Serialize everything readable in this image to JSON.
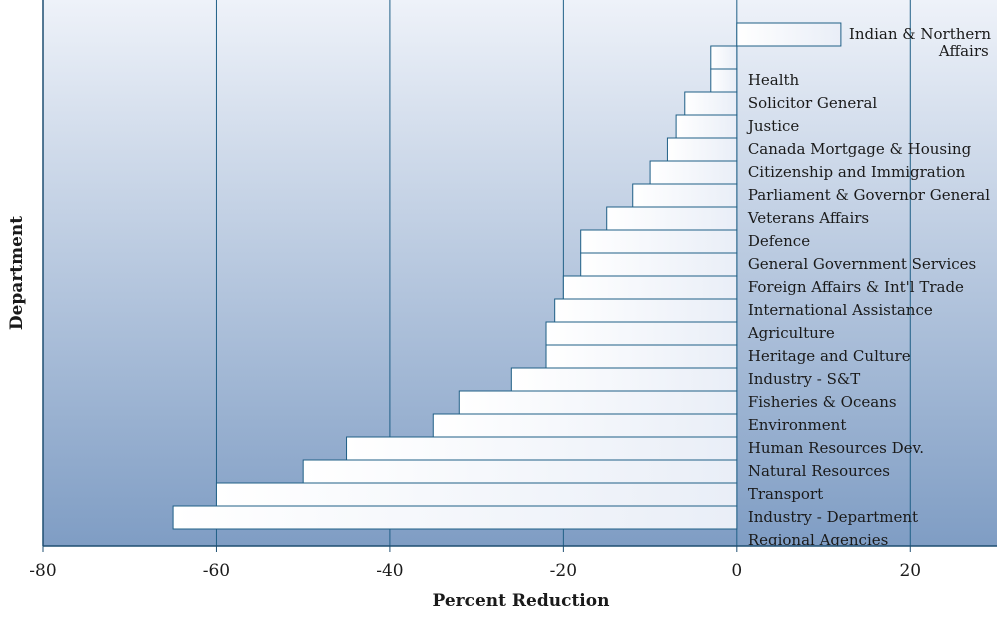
{
  "chart_data": {
    "type": "bar",
    "orientation": "horizontal",
    "xlabel": "Percent Reduction",
    "ylabel": "Department",
    "xlim": [
      -80,
      30
    ],
    "xticks": [
      -80,
      -60,
      -40,
      -20,
      0,
      20
    ],
    "grid": "vertical",
    "categories": [
      "Indian & Northern Affairs",
      "Health",
      "Solicitor General",
      "Justice",
      "Canada Mortgage & Housing",
      "Citizenship and Immigration",
      "Parliament & Governor General",
      "Veterans Affairs",
      "Defence",
      "General Government Services",
      "Foreign Affairs & Int'l Trade",
      "International Assistance",
      "Agriculture",
      "Heritage and Culture",
      "Industry - S&T",
      "Fisheries & Oceans",
      "Environment",
      "Human Resources Dev.",
      "Natural Resources",
      "Transport",
      "Industry - Department",
      "Regional Agencies"
    ],
    "values": [
      12,
      -3,
      -3,
      -6,
      -7,
      -8,
      -10,
      -12,
      -15,
      -18,
      -18,
      -20,
      -21,
      -22,
      -22,
      -26,
      -32,
      -35,
      -45,
      -50,
      -60,
      -65
    ],
    "colors": {
      "background_top": "#eef2f9",
      "background_bottom": "#7f9dc4",
      "bar_fill_start": "#ffffff",
      "bar_fill_end": "#e9eef7",
      "bar_stroke": "#1f5f86",
      "grid": "#1f5f86",
      "axis": "#1f4f72"
    }
  }
}
